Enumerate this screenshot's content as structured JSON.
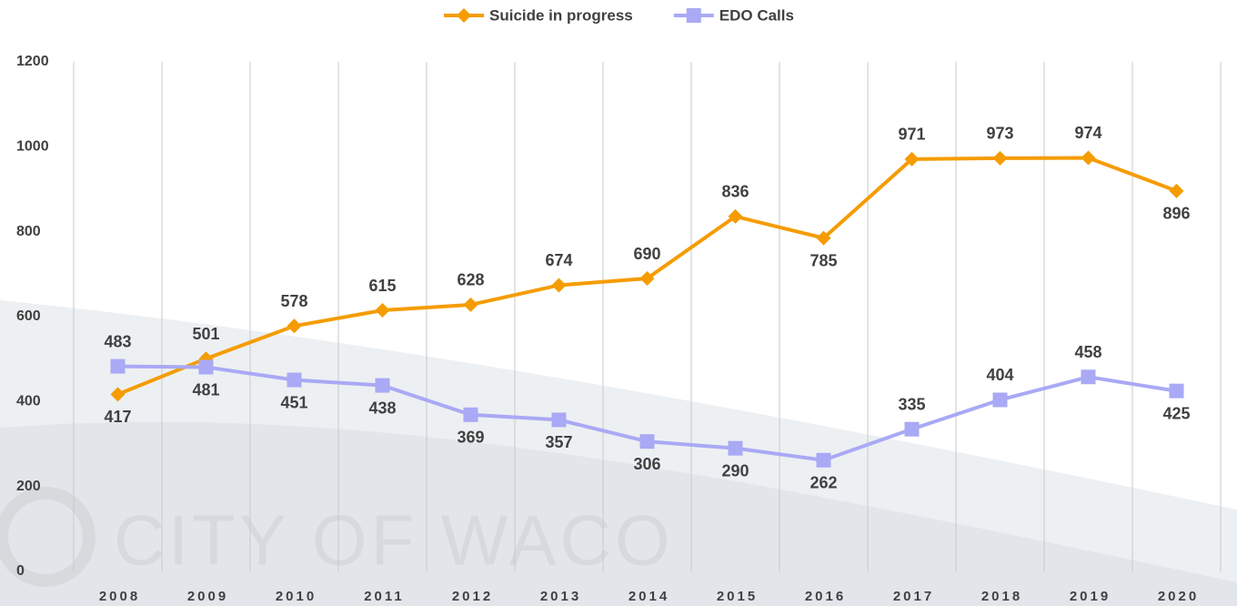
{
  "chart_data": {
    "type": "line",
    "watermark": "CITY OF WACO",
    "categories": [
      "2008",
      "2009",
      "2010",
      "2011",
      "2012",
      "2013",
      "2014",
      "2015",
      "2016",
      "2017",
      "2018",
      "2019",
      "2020"
    ],
    "series": [
      {
        "name": "Suicide in progress",
        "color": "#f59c00",
        "marker": "diamond",
        "values": [
          417,
          501,
          578,
          615,
          628,
          674,
          690,
          836,
          785,
          971,
          973,
          974,
          896
        ]
      },
      {
        "name": "EDO Calls",
        "color": "#a9a9f5",
        "marker": "square",
        "values": [
          483,
          481,
          451,
          438,
          369,
          357,
          306,
          290,
          262,
          335,
          404,
          458,
          425
        ]
      }
    ],
    "ylim": [
      0,
      1200
    ],
    "yticks": [
      0,
      200,
      400,
      600,
      800,
      1000,
      1200
    ],
    "grid": "vertical",
    "legend": "top"
  }
}
